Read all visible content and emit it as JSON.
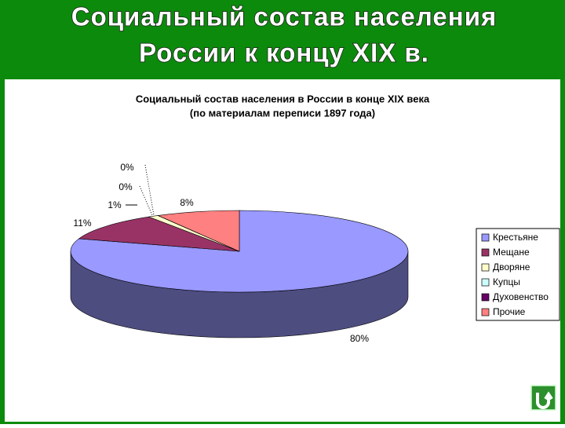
{
  "header": {
    "title_lines": [
      "Социальный состав населения",
      "России к концу XIX в."
    ]
  },
  "chart_data": {
    "type": "pie3d",
    "title_lines": [
      "Социальный состав населения в России в конце XIX века",
      "(по материалам переписи 1897 года)"
    ],
    "categories": [
      "Крестьяне",
      "Мещане",
      "Дворяне",
      "Купцы",
      "Духовенство",
      "Прочие"
    ],
    "values": [
      80,
      11,
      1,
      0,
      0,
      8
    ],
    "value_labels": [
      "80%",
      "11%",
      "1%",
      "0%",
      "0%",
      "8%"
    ],
    "colors": [
      "#9999ff",
      "#993366",
      "#ffffcc",
      "#ccffff",
      "#660066",
      "#ff8080"
    ],
    "legend": "right"
  }
}
